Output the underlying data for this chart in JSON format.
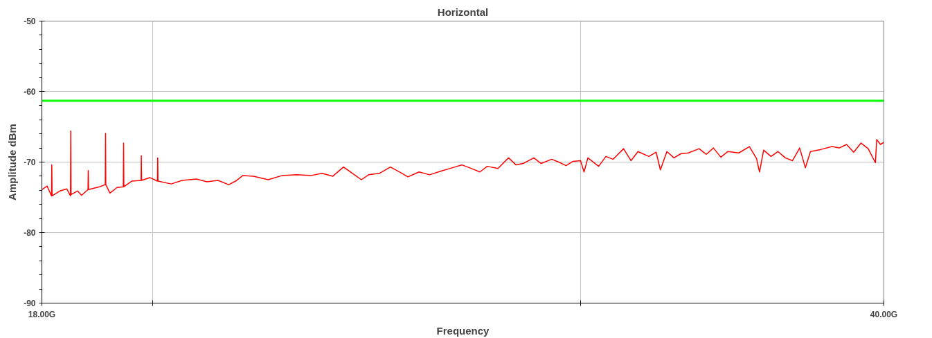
{
  "chart_data": {
    "type": "line",
    "title": "Horizontal",
    "xlabel": "Frequency",
    "ylabel": "Amplitude dBm",
    "log": "x",
    "grid": true,
    "marker": "none",
    "line_style": "solid",
    "xlim": [
      18,
      40
    ],
    "xticks": [
      {
        "value": 18,
        "label": "18.00G"
      },
      {
        "value": 20,
        "label": null
      },
      {
        "value": 30,
        "label": null
      },
      {
        "value": 40,
        "label": "40.00G"
      }
    ],
    "ylim": [
      -90,
      -50
    ],
    "yticks": [
      -90,
      {
        "value": -88,
        "label": null
      },
      {
        "value": -86,
        "label": null
      },
      {
        "value": -84,
        "label": null
      },
      {
        "value": -82,
        "label": null
      },
      -80,
      {
        "value": -78,
        "label": null
      },
      {
        "value": -76,
        "label": null
      },
      {
        "value": -74,
        "label": null
      },
      {
        "value": -72,
        "label": null
      },
      -70,
      {
        "value": -68,
        "label": null
      },
      {
        "value": -66,
        "label": null
      },
      {
        "value": -64,
        "label": null
      },
      {
        "value": -62,
        "label": null
      },
      -60,
      {
        "value": -58,
        "label": null
      },
      {
        "value": -56,
        "label": null
      },
      {
        "value": -54,
        "label": null
      },
      {
        "value": -52,
        "label": null
      },
      -50
    ],
    "ref_lines": [
      {
        "axis": "y",
        "value": -61.3,
        "label": null,
        "color": "#00ff00",
        "line_style": "solid"
      }
    ],
    "series": [
      {
        "color": "#ff0000",
        "x": [
          18.0,
          18.09,
          18.165,
          18.17,
          18.175,
          18.31,
          18.43,
          18.495,
          18.5,
          18.505,
          18.62,
          18.69,
          18.805,
          18.81,
          18.815,
          19.01,
          19.115,
          19.12,
          19.125,
          19.2,
          19.33,
          19.445,
          19.45,
          19.455,
          19.6,
          19.775,
          19.78,
          19.785,
          19.94,
          20.085,
          20.09,
          20.095,
          20.35,
          20.56,
          20.84,
          21.05,
          21.27,
          21.49,
          21.63,
          21.78,
          22.0,
          22.31,
          22.61,
          22.92,
          23.24,
          23.48,
          23.72,
          23.96,
          24.21,
          24.37,
          24.54,
          24.79,
          25.05,
          25.3,
          25.47,
          25.74,
          26.0,
          26.27,
          26.63,
          26.81,
          27.0,
          27.27,
          27.46,
          27.74,
          28.02,
          28.22,
          28.41,
          28.7,
          28.9,
          29.19,
          29.39,
          29.59,
          29.79,
          30.0,
          30.1,
          30.21,
          30.52,
          30.73,
          30.94,
          31.25,
          31.47,
          31.68,
          32.01,
          32.23,
          32.36,
          32.56,
          32.78,
          33.0,
          33.23,
          33.57,
          33.8,
          34.03,
          34.27,
          34.5,
          34.86,
          35.21,
          35.45,
          35.55,
          35.69,
          35.94,
          36.18,
          36.43,
          36.68,
          36.93,
          37.13,
          37.31,
          37.69,
          38.08,
          38.34,
          38.61,
          38.87,
          39.14,
          39.41,
          39.68,
          39.73,
          39.87,
          40.0
        ],
        "values": [
          -73.9,
          -73.4,
          -74.8,
          -70.4,
          -74.8,
          -74.1,
          -73.8,
          -74.8,
          -65.6,
          -74.6,
          -74.1,
          -74.7,
          -73.9,
          -71.2,
          -73.9,
          -73.5,
          -73.2,
          -65.9,
          -73.2,
          -74.4,
          -73.6,
          -73.5,
          -67.3,
          -73.5,
          -72.7,
          -72.6,
          -69.1,
          -72.6,
          -72.2,
          -72.7,
          -69.4,
          -72.7,
          -73.1,
          -72.6,
          -72.4,
          -72.8,
          -72.6,
          -73.2,
          -72.7,
          -71.9,
          -72.0,
          -72.5,
          -71.9,
          -71.8,
          -71.9,
          -71.6,
          -72.0,
          -70.7,
          -71.8,
          -72.5,
          -71.8,
          -71.6,
          -70.7,
          -71.5,
          -72.1,
          -71.4,
          -71.8,
          -71.3,
          -70.7,
          -70.4,
          -70.8,
          -71.4,
          -70.6,
          -70.9,
          -69.4,
          -70.4,
          -70.2,
          -69.4,
          -70.2,
          -69.6,
          -70.0,
          -70.5,
          -69.9,
          -69.8,
          -71.4,
          -69.4,
          -70.6,
          -69.2,
          -69.6,
          -68.1,
          -69.8,
          -68.5,
          -69.2,
          -68.6,
          -71.1,
          -68.5,
          -69.4,
          -68.8,
          -68.7,
          -68.1,
          -68.9,
          -68.0,
          -69.3,
          -68.5,
          -68.7,
          -67.8,
          -69.5,
          -71.4,
          -68.3,
          -69.2,
          -68.5,
          -69.4,
          -69.8,
          -68.0,
          -70.8,
          -68.5,
          -68.2,
          -67.8,
          -68.0,
          -67.5,
          -68.6,
          -67.3,
          -68.1,
          -70.1,
          -66.8,
          -67.5,
          -67.2
        ]
      }
    ]
  }
}
